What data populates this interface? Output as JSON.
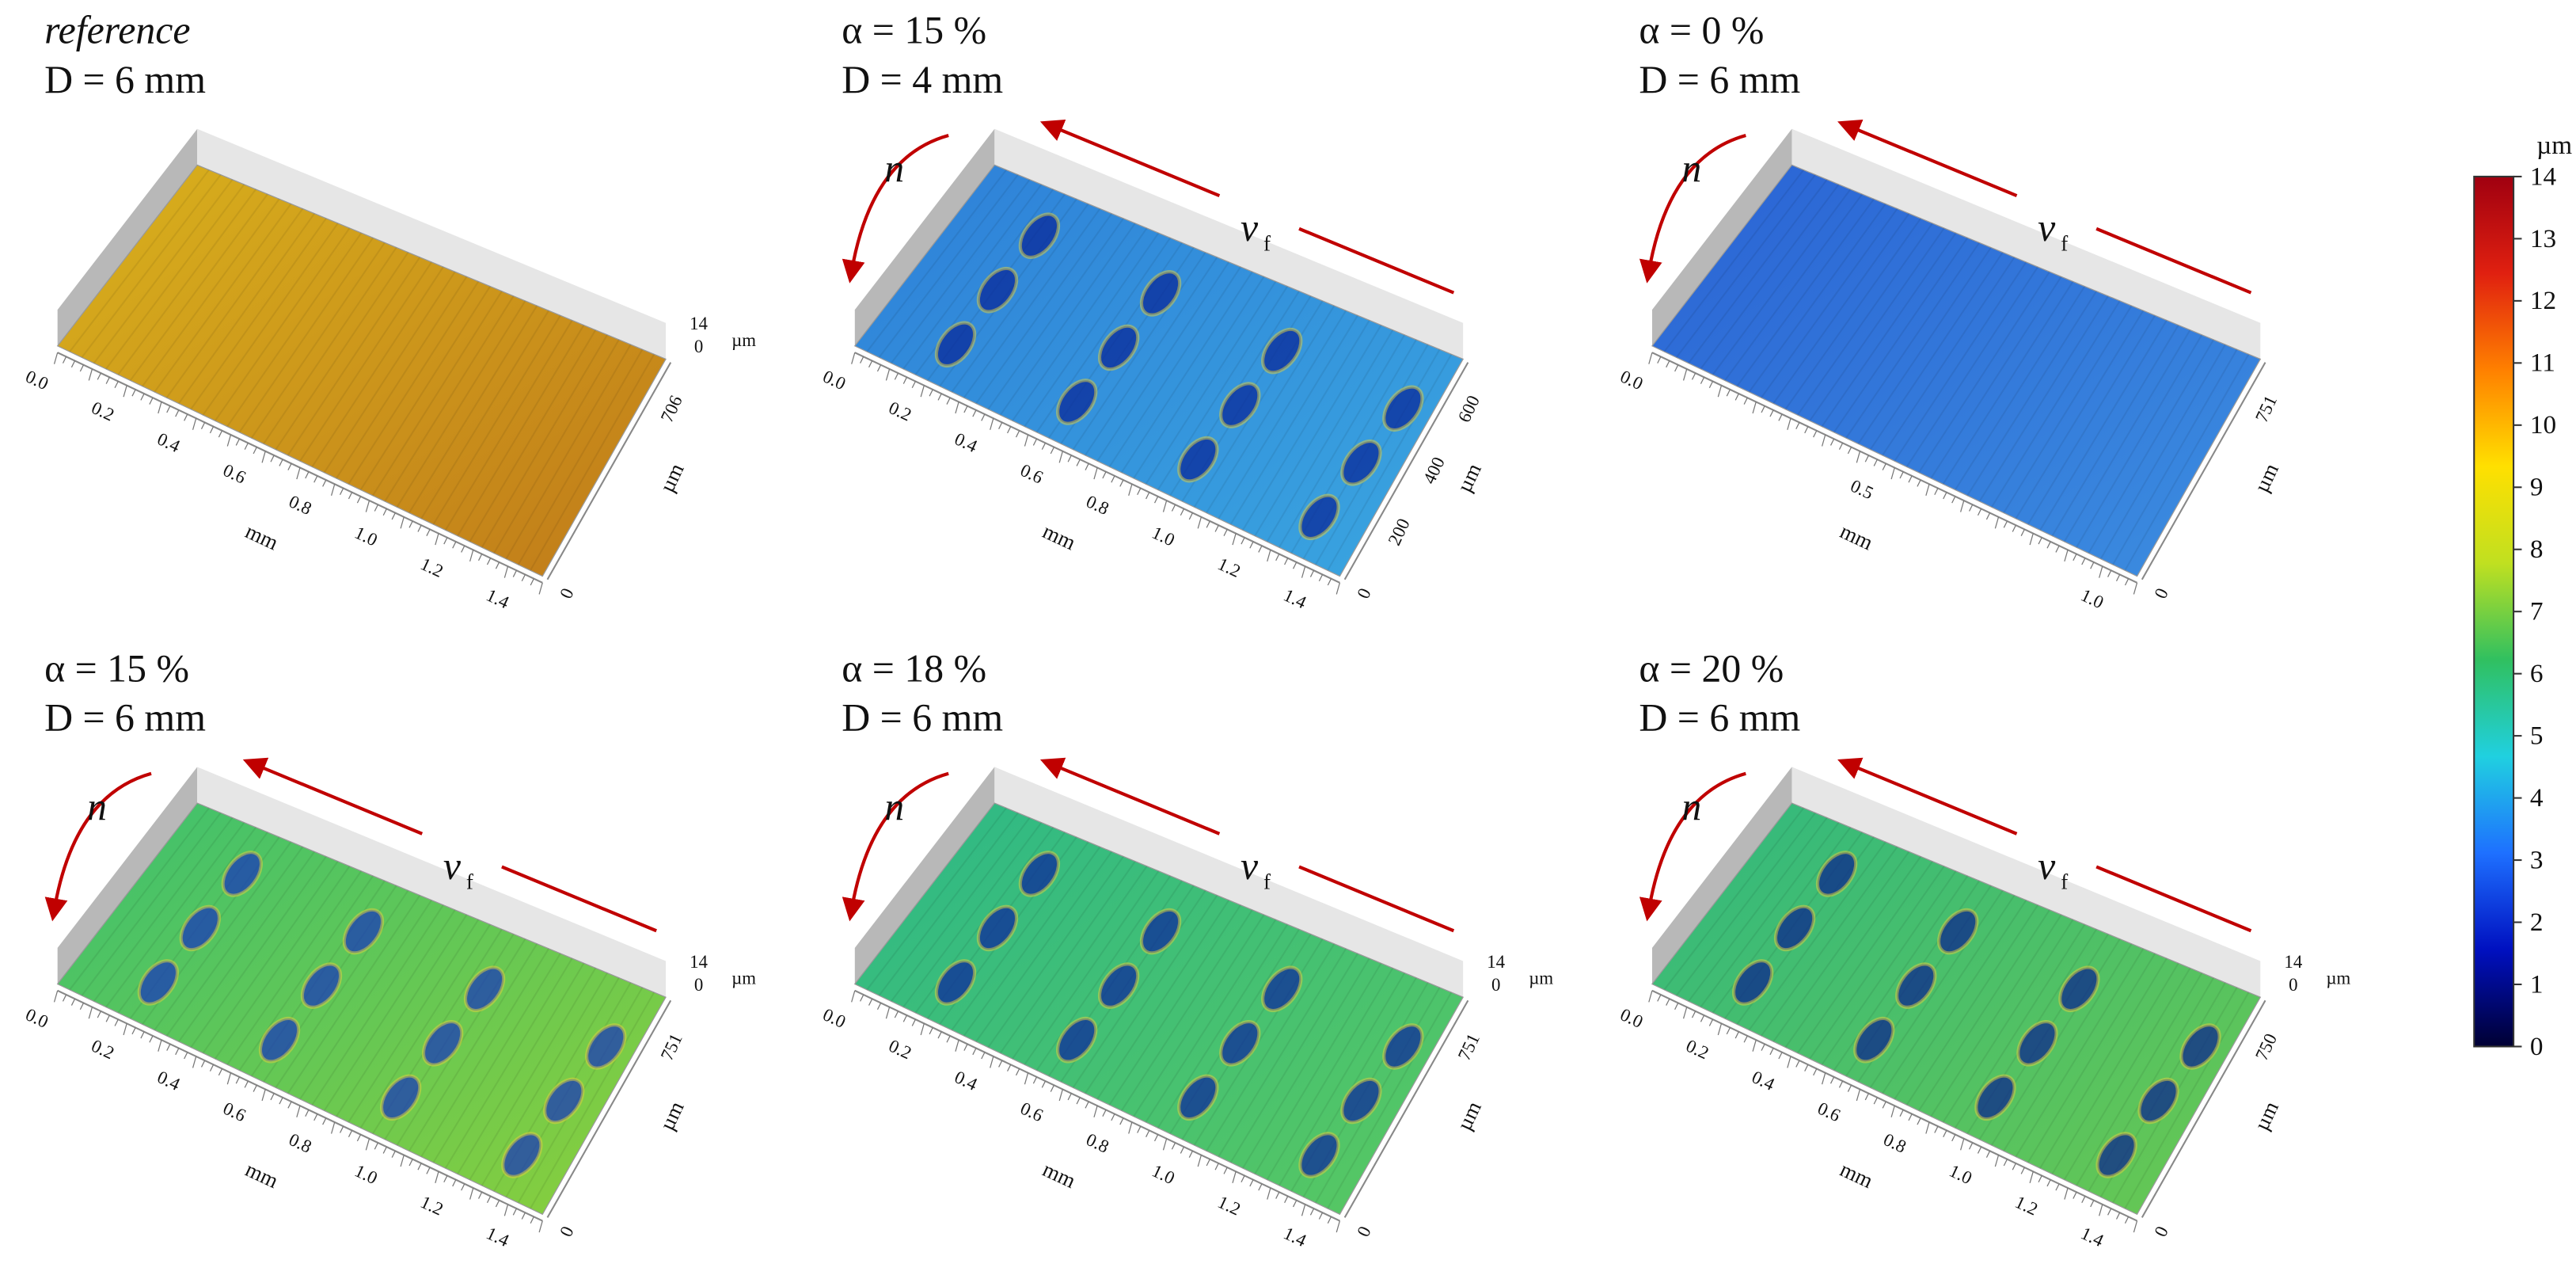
{
  "panels": [
    {
      "label": "reference",
      "size": "D = 6 mm",
      "x_ticks": [
        "0.0",
        "0.2",
        "0.4",
        "0.6",
        "0.8",
        "1.0",
        "1.2",
        "1.4"
      ],
      "x_unit": "mm",
      "y_ticks": [
        "0",
        "706"
      ],
      "y_unit": "µm",
      "z_ticks": [
        "14",
        "0"
      ],
      "z_unit": "µm",
      "surface_colors": [
        "#d9b21c",
        "#c07a1a"
      ]
    },
    {
      "label": "α = 15 %",
      "size": "D = 4 mm",
      "rotation": "n",
      "feed": "v",
      "feed_subscript": "f",
      "x_ticks": [
        "0.0",
        "0.2",
        "0.4",
        "0.6",
        "0.8",
        "1.0",
        "1.2",
        "1.4"
      ],
      "x_unit": "mm",
      "y_ticks": [
        "0",
        "200",
        "400",
        "600"
      ],
      "y_unit": "µm",
      "surface_colors": [
        "#2e7fd8",
        "#3aa6e0"
      ],
      "dimple_color": "#0a2a9a"
    },
    {
      "label": "α = 0 %",
      "size": "D = 6 mm",
      "rotation": "n",
      "feed": "v",
      "feed_subscript": "f",
      "x_ticks": [
        "0.0",
        "0.5",
        "1.0"
      ],
      "x_unit": "mm",
      "y_ticks": [
        "0",
        "751"
      ],
      "y_unit": "µm",
      "surface_colors": [
        "#2a62d4",
        "#3c8ee0"
      ]
    },
    {
      "label": "α = 15 %",
      "size": "D = 6 mm",
      "rotation": "n",
      "feed": "v",
      "feed_subscript": "f",
      "x_ticks": [
        "0.0",
        "0.2",
        "0.4",
        "0.6",
        "0.8",
        "1.0",
        "1.2",
        "1.4"
      ],
      "x_unit": "mm",
      "y_ticks": [
        "0",
        "751"
      ],
      "y_unit": "µm",
      "z_ticks": [
        "14",
        "0"
      ],
      "z_unit": "µm",
      "surface_colors": [
        "#3cc070",
        "#8ccf3a"
      ],
      "dimple_color": "#1a3ab8"
    },
    {
      "label": "α = 18 %",
      "size": "D = 6 mm",
      "rotation": "n",
      "feed": "v",
      "feed_subscript": "f",
      "x_ticks": [
        "0.0",
        "0.2",
        "0.4",
        "0.6",
        "0.8",
        "1.0",
        "1.2",
        "1.4"
      ],
      "x_unit": "mm",
      "y_ticks": [
        "0",
        "751"
      ],
      "y_unit": "µm",
      "z_ticks": [
        "14",
        "0"
      ],
      "z_unit": "µm",
      "surface_colors": [
        "#2cb888",
        "#5ac860"
      ],
      "dimple_color": "#0e2a9c"
    },
    {
      "label": "α = 20 %",
      "size": "D = 6 mm",
      "rotation": "n",
      "feed": "v",
      "feed_subscript": "f",
      "x_ticks": [
        "0.0",
        "0.2",
        "0.4",
        "0.6",
        "0.8",
        "1.0",
        "1.2",
        "1.4"
      ],
      "x_unit": "mm",
      "y_ticks": [
        "0",
        "750"
      ],
      "y_unit": "µm",
      "z_ticks": [
        "14",
        "0"
      ],
      "z_unit": "µm",
      "surface_colors": [
        "#30b880",
        "#6ac850"
      ],
      "dimple_color": "#0c268e"
    }
  ],
  "colorbar": {
    "unit": "µm",
    "ticks": [
      0,
      1,
      2,
      3,
      4,
      5,
      6,
      7,
      8,
      9,
      10,
      11,
      12,
      13,
      14
    ],
    "colors": [
      "#000033",
      "#0010c0",
      "#1e70ff",
      "#20d0e0",
      "#30c060",
      "#c0e020",
      "#ffe000",
      "#ff8000",
      "#e02010",
      "#a00010"
    ]
  }
}
